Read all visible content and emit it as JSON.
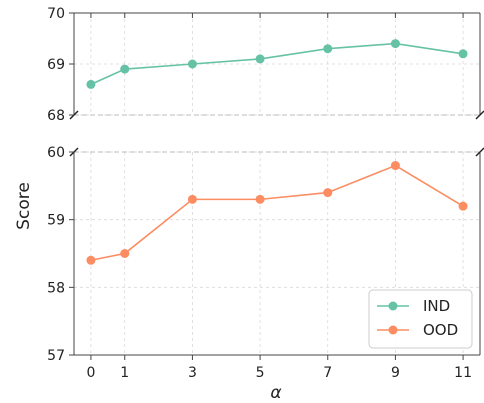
{
  "chart_data": {
    "type": "line",
    "broken_y_axis": true,
    "x": [
      0,
      1,
      3,
      5,
      7,
      9,
      11
    ],
    "xlabel": "α",
    "ylabel": "Score",
    "grid": true,
    "legend_position": "bottom-right",
    "panels": [
      {
        "ylim": [
          68,
          70
        ],
        "yticks": [
          68,
          69,
          70
        ],
        "series": [
          {
            "name": "IND",
            "values": [
              68.6,
              68.9,
              69.0,
              69.1,
              69.3,
              69.4,
              69.2
            ]
          }
        ]
      },
      {
        "ylim": [
          57,
          60
        ],
        "yticks": [
          57,
          58,
          59,
          60
        ],
        "series": [
          {
            "name": "OOD",
            "values": [
              58.4,
              58.5,
              59.3,
              59.3,
              59.4,
              59.8,
              59.2
            ]
          }
        ]
      }
    ],
    "colors": {
      "IND": "#66c2a5",
      "OOD": "#fc8d62"
    }
  }
}
